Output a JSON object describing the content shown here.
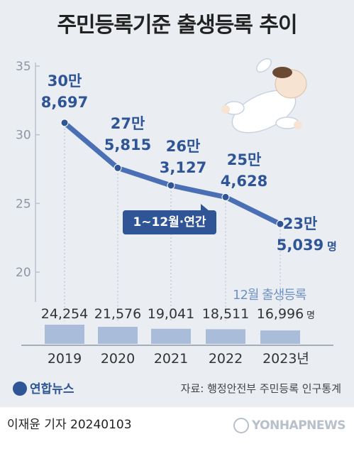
{
  "header": {
    "title": "주민등록기준 출생등록 추이"
  },
  "callout": {
    "label": "1~12월·연간"
  },
  "chart_data": [
    {
      "type": "line",
      "x": [
        "2019",
        "2020",
        "2021",
        "2022",
        "2023"
      ],
      "series": [
        {
          "values": [
            308697,
            275815,
            263127,
            254628,
            235039
          ]
        }
      ],
      "data_labels": [
        [
          "30만",
          "8,697"
        ],
        [
          "27만",
          "5,815"
        ],
        [
          "26만",
          "3,127"
        ],
        [
          "25만",
          "4,628"
        ],
        [
          "23만",
          "5,039"
        ]
      ],
      "unit_label": "명",
      "yticks": [
        "35",
        "30",
        "25",
        "20"
      ],
      "ylim": [
        20,
        35
      ],
      "grid": false,
      "line_color": "#4a6fb5",
      "point_color": "#2f5596"
    },
    {
      "type": "bar",
      "title": "12월 출생등록",
      "categories": [
        "2019",
        "2020",
        "2021",
        "2022",
        "2023년"
      ],
      "values": [
        24254,
        21576,
        19041,
        18511,
        16996
      ],
      "value_labels": [
        "24,254",
        "21,576",
        "19,041",
        "18,511",
        "16,996"
      ],
      "unit_label": "명",
      "bar_color": "#a9bcda"
    }
  ],
  "footer": {
    "brand": "연합뉴스",
    "source": "자료: 행정안전부 주민등록 인구통계",
    "reporter": "이재윤 기자  20240103",
    "watermark": "YONHAPNEWS"
  }
}
